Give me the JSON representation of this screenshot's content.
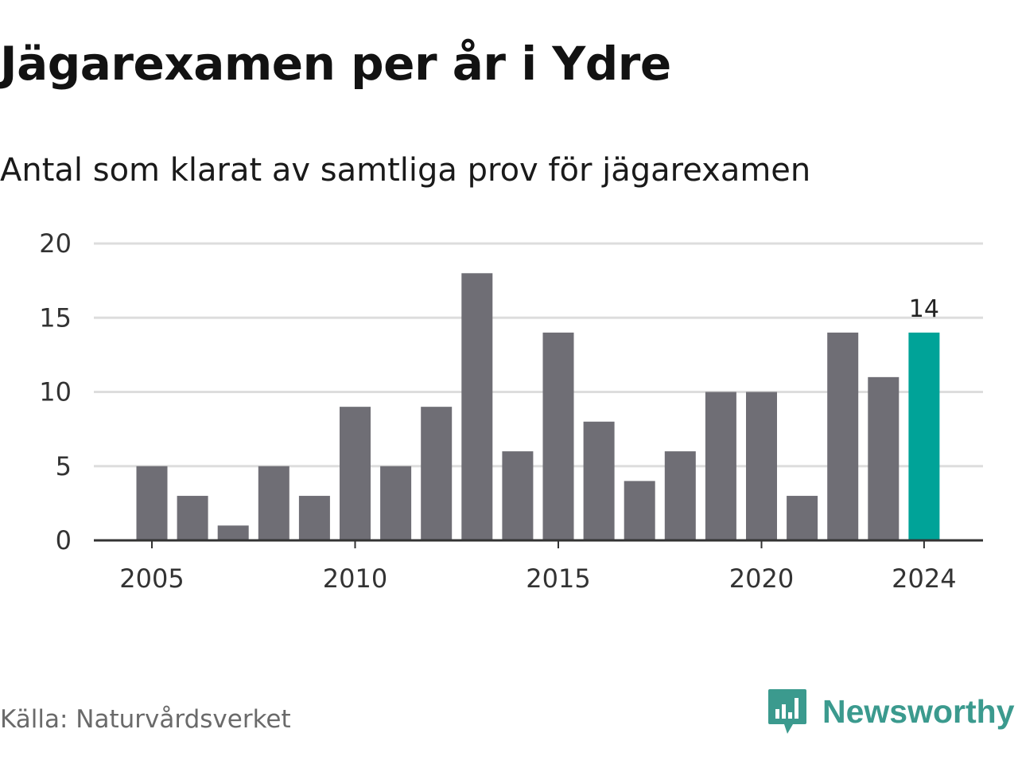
{
  "title": "Jägarexamen per år i Ydre",
  "subtitle": "Antal som klarat av samtliga prov för jägarexamen",
  "source": "Källa: Naturvårdsverket",
  "logo": {
    "name": "Newsworthy",
    "icon": "chat-bubble-bar-chart-icon"
  },
  "colors": {
    "bar": "#6f6e75",
    "highlight": "#00a398",
    "grid": "#dddddd",
    "axis": "#333333",
    "logo": "#3b9a8e"
  },
  "chart_data": {
    "type": "bar",
    "x": [
      2005,
      2006,
      2007,
      2008,
      2009,
      2010,
      2011,
      2012,
      2013,
      2014,
      2015,
      2016,
      2017,
      2018,
      2019,
      2020,
      2021,
      2022,
      2023,
      2024
    ],
    "values": [
      5,
      3,
      1,
      5,
      3,
      9,
      5,
      9,
      18,
      6,
      14,
      8,
      4,
      6,
      10,
      10,
      3,
      14,
      11,
      14
    ],
    "xticks": [
      2005,
      2010,
      2015,
      2020,
      2024
    ],
    "yticks": [
      0,
      5,
      10,
      15,
      20
    ],
    "ylim": [
      0,
      20
    ],
    "highlight_year": 2024,
    "value_labels": [
      {
        "x": 2024,
        "label": "14"
      }
    ],
    "grid": "horizontal",
    "legend": "none"
  }
}
